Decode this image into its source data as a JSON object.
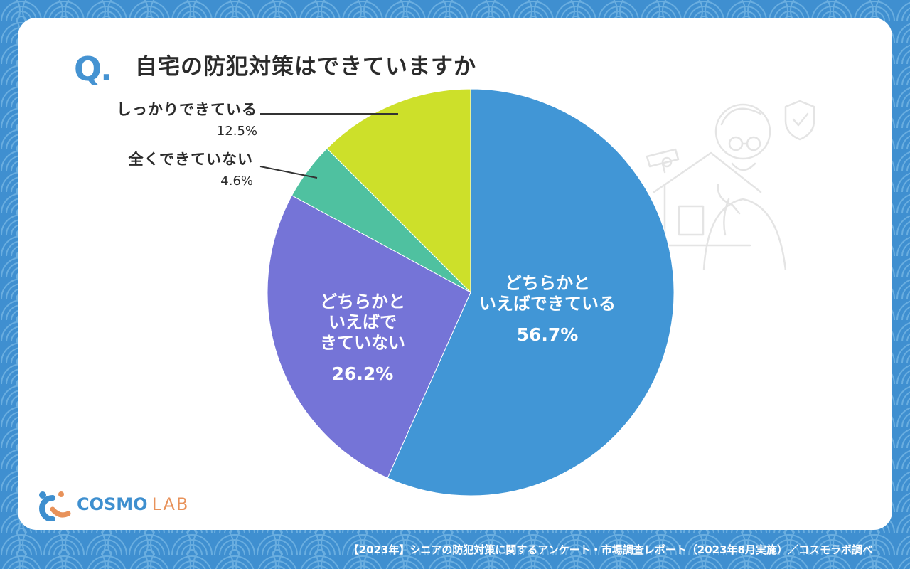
{
  "question_mark": "Q.",
  "title": "自宅の防犯対策はできていますか",
  "chart_data": {
    "type": "pie",
    "title": "自宅の防犯対策はできていますか",
    "slices": [
      {
        "label": "どちらかと\nいえばできている",
        "value": 56.7,
        "display": "56.7%",
        "color": "#4196d6"
      },
      {
        "label": "どちらかと\nいえばで\nきていない",
        "value": 26.2,
        "display": "26.2%",
        "color": "#7574d7"
      },
      {
        "label": "全くできていない",
        "value": 4.6,
        "display": "4.6%",
        "color": "#4fc1a0"
      },
      {
        "label": "しっかりできている",
        "value": 12.5,
        "display": "12.5%",
        "color": "#cde02a"
      }
    ]
  },
  "labels": {
    "shikkari": {
      "name": "しっかりできている",
      "value": "12.5%"
    },
    "mattaku": {
      "name": "全くできていない",
      "value": "4.6%"
    },
    "dochira_dekiteiru": {
      "line1": "どちらかと",
      "line2": "いえばできている",
      "value": "56.7%"
    },
    "dochira_dekiteinai": {
      "line1": "どちらかと",
      "line2": "いえばで",
      "line3": "きていない",
      "value": "26.2%"
    }
  },
  "logo": {
    "cosmo": "COSMO",
    "lab": "LAB"
  },
  "footer": "【2023年】シニアの防犯対策に関するアンケート・市場調査レポート（2023年8月実施）／コスモラボ調べ",
  "colors": {
    "background": "#3f8fd0",
    "accent": "#4593d2"
  }
}
